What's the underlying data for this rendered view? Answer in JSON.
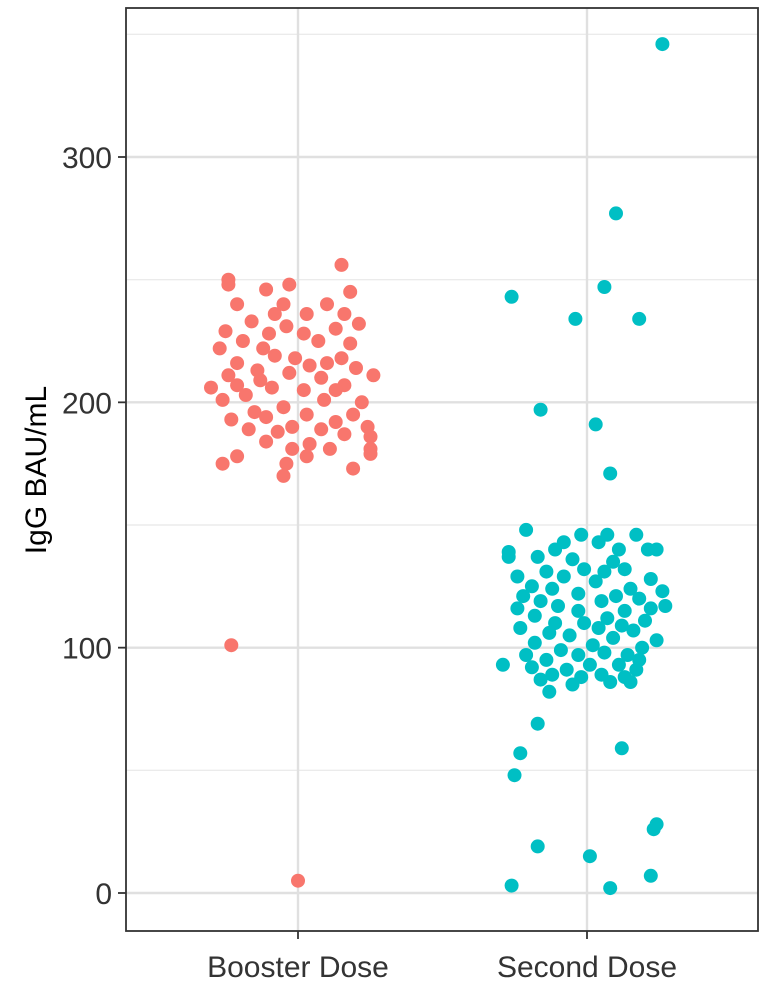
{
  "chart_data": {
    "type": "scatter",
    "title": "",
    "xlabel": "",
    "ylabel": "IgG BAU/mL",
    "ylim": [
      -16,
      357
    ],
    "y_ticks": [
      0,
      100,
      200,
      300
    ],
    "y_tick_labels": [
      "0",
      "100",
      "200",
      "300"
    ],
    "grid": true,
    "legend": "none",
    "categories": [
      "Booster Dose",
      "Second Dose"
    ],
    "series": [
      {
        "color": "#F8766D",
        "category": "Booster Dose",
        "points": [
          {
            "x": -0.24,
            "y": 250
          },
          {
            "x": -0.24,
            "y": 248
          },
          {
            "x": -0.03,
            "y": 248
          },
          {
            "x": 0.15,
            "y": 256
          },
          {
            "x": -0.11,
            "y": 246
          },
          {
            "x": 0.18,
            "y": 245
          },
          {
            "x": -0.21,
            "y": 240
          },
          {
            "x": -0.05,
            "y": 240
          },
          {
            "x": 0.1,
            "y": 240
          },
          {
            "x": -0.08,
            "y": 236
          },
          {
            "x": 0.03,
            "y": 236
          },
          {
            "x": 0.16,
            "y": 236
          },
          {
            "x": -0.16,
            "y": 233
          },
          {
            "x": -0.04,
            "y": 231
          },
          {
            "x": 0.21,
            "y": 232
          },
          {
            "x": -0.25,
            "y": 229
          },
          {
            "x": -0.1,
            "y": 228
          },
          {
            "x": 0.02,
            "y": 228
          },
          {
            "x": 0.13,
            "y": 230
          },
          {
            "x": -0.19,
            "y": 225
          },
          {
            "x": -0.12,
            "y": 222
          },
          {
            "x": 0.07,
            "y": 225
          },
          {
            "x": 0.18,
            "y": 224
          },
          {
            "x": -0.27,
            "y": 222
          },
          {
            "x": -0.08,
            "y": 219
          },
          {
            "x": -0.01,
            "y": 218
          },
          {
            "x": 0.15,
            "y": 218
          },
          {
            "x": -0.21,
            "y": 216
          },
          {
            "x": 0.04,
            "y": 215
          },
          {
            "x": 0.1,
            "y": 216
          },
          {
            "x": -0.14,
            "y": 213
          },
          {
            "x": 0.2,
            "y": 214
          },
          {
            "x": -0.24,
            "y": 211
          },
          {
            "x": -0.03,
            "y": 212
          },
          {
            "x": 0.26,
            "y": 211
          },
          {
            "x": -0.13,
            "y": 209
          },
          {
            "x": 0.08,
            "y": 210
          },
          {
            "x": -0.21,
            "y": 207
          },
          {
            "x": 0.16,
            "y": 207
          },
          {
            "x": -0.09,
            "y": 206
          },
          {
            "x": -0.3,
            "y": 206
          },
          {
            "x": 0.02,
            "y": 205
          },
          {
            "x": 0.13,
            "y": 205
          },
          {
            "x": -0.18,
            "y": 203
          },
          {
            "x": -0.26,
            "y": 201
          },
          {
            "x": 0.09,
            "y": 201
          },
          {
            "x": 0.22,
            "y": 200
          },
          {
            "x": -0.05,
            "y": 198
          },
          {
            "x": -0.15,
            "y": 196
          },
          {
            "x": 0.03,
            "y": 195
          },
          {
            "x": 0.19,
            "y": 195
          },
          {
            "x": -0.23,
            "y": 193
          },
          {
            "x": -0.11,
            "y": 194
          },
          {
            "x": 0.13,
            "y": 192
          },
          {
            "x": -0.02,
            "y": 190
          },
          {
            "x": 0.08,
            "y": 189
          },
          {
            "x": 0.24,
            "y": 190
          },
          {
            "x": -0.17,
            "y": 189
          },
          {
            "x": -0.07,
            "y": 188
          },
          {
            "x": 0.16,
            "y": 187
          },
          {
            "x": 0.25,
            "y": 186
          },
          {
            "x": -0.11,
            "y": 184
          },
          {
            "x": 0.04,
            "y": 183
          },
          {
            "x": -0.02,
            "y": 181
          },
          {
            "x": 0.11,
            "y": 181
          },
          {
            "x": 0.25,
            "y": 181
          },
          {
            "x": 0.25,
            "y": 179
          },
          {
            "x": 0.03,
            "y": 178
          },
          {
            "x": -0.21,
            "y": 178
          },
          {
            "x": -0.04,
            "y": 175
          },
          {
            "x": -0.26,
            "y": 175
          },
          {
            "x": 0.19,
            "y": 173
          },
          {
            "x": -0.05,
            "y": 170
          },
          {
            "x": -0.23,
            "y": 101
          },
          {
            "x": 0.0,
            "y": 5
          }
        ]
      },
      {
        "color": "#00BFC4",
        "category": "Second Dose",
        "points": [
          {
            "x": 0.26,
            "y": 346
          },
          {
            "x": 0.1,
            "y": 277
          },
          {
            "x": -0.26,
            "y": 243
          },
          {
            "x": 0.06,
            "y": 247
          },
          {
            "x": -0.04,
            "y": 234
          },
          {
            "x": 0.18,
            "y": 234
          },
          {
            "x": -0.16,
            "y": 197
          },
          {
            "x": 0.03,
            "y": 191
          },
          {
            "x": 0.08,
            "y": 171
          },
          {
            "x": -0.21,
            "y": 148
          },
          {
            "x": -0.02,
            "y": 146
          },
          {
            "x": 0.07,
            "y": 146
          },
          {
            "x": 0.17,
            "y": 146
          },
          {
            "x": -0.08,
            "y": 143
          },
          {
            "x": 0.04,
            "y": 143
          },
          {
            "x": -0.27,
            "y": 139
          },
          {
            "x": -0.11,
            "y": 140
          },
          {
            "x": 0.11,
            "y": 140
          },
          {
            "x": 0.21,
            "y": 140
          },
          {
            "x": 0.24,
            "y": 140
          },
          {
            "x": -0.17,
            "y": 137
          },
          {
            "x": -0.05,
            "y": 136
          },
          {
            "x": -0.27,
            "y": 137
          },
          {
            "x": 0.09,
            "y": 135
          },
          {
            "x": -0.01,
            "y": 132
          },
          {
            "x": 0.13,
            "y": 132
          },
          {
            "x": -0.14,
            "y": 131
          },
          {
            "x": 0.06,
            "y": 131
          },
          {
            "x": -0.24,
            "y": 129
          },
          {
            "x": -0.08,
            "y": 129
          },
          {
            "x": 0.22,
            "y": 128
          },
          {
            "x": 0.03,
            "y": 127
          },
          {
            "x": -0.19,
            "y": 125
          },
          {
            "x": -0.12,
            "y": 124
          },
          {
            "x": 0.15,
            "y": 124
          },
          {
            "x": 0.26,
            "y": 123
          },
          {
            "x": -0.22,
            "y": 121
          },
          {
            "x": -0.03,
            "y": 122
          },
          {
            "x": 0.1,
            "y": 121
          },
          {
            "x": -0.16,
            "y": 119
          },
          {
            "x": 0.05,
            "y": 119
          },
          {
            "x": 0.18,
            "y": 120
          },
          {
            "x": -0.1,
            "y": 117
          },
          {
            "x": 0.22,
            "y": 116
          },
          {
            "x": 0.27,
            "y": 117
          },
          {
            "x": -0.24,
            "y": 116
          },
          {
            "x": -0.03,
            "y": 115
          },
          {
            "x": 0.13,
            "y": 115
          },
          {
            "x": -0.18,
            "y": 113
          },
          {
            "x": 0.07,
            "y": 112
          },
          {
            "x": 0.2,
            "y": 111
          },
          {
            "x": -0.11,
            "y": 110
          },
          {
            "x": -0.01,
            "y": 110
          },
          {
            "x": 0.12,
            "y": 109
          },
          {
            "x": -0.23,
            "y": 108
          },
          {
            "x": 0.04,
            "y": 108
          },
          {
            "x": 0.16,
            "y": 107
          },
          {
            "x": -0.13,
            "y": 106
          },
          {
            "x": -0.06,
            "y": 105
          },
          {
            "x": 0.09,
            "y": 104
          },
          {
            "x": 0.24,
            "y": 103
          },
          {
            "x": -0.18,
            "y": 102
          },
          {
            "x": 0.02,
            "y": 101
          },
          {
            "x": 0.19,
            "y": 100
          },
          {
            "x": -0.09,
            "y": 99
          },
          {
            "x": 0.06,
            "y": 98
          },
          {
            "x": -0.21,
            "y": 97
          },
          {
            "x": -0.03,
            "y": 97
          },
          {
            "x": 0.14,
            "y": 97
          },
          {
            "x": -0.14,
            "y": 95
          },
          {
            "x": 0.18,
            "y": 95
          },
          {
            "x": -0.29,
            "y": 93
          },
          {
            "x": 0.01,
            "y": 93
          },
          {
            "x": 0.11,
            "y": 93
          },
          {
            "x": -0.19,
            "y": 92
          },
          {
            "x": -0.07,
            "y": 91
          },
          {
            "x": 0.17,
            "y": 91
          },
          {
            "x": -0.12,
            "y": 89
          },
          {
            "x": 0.05,
            "y": 89
          },
          {
            "x": -0.02,
            "y": 88
          },
          {
            "x": 0.13,
            "y": 88
          },
          {
            "x": -0.16,
            "y": 87
          },
          {
            "x": 0.08,
            "y": 86
          },
          {
            "x": -0.05,
            "y": 85
          },
          {
            "x": 0.15,
            "y": 86
          },
          {
            "x": -0.13,
            "y": 82
          },
          {
            "x": -0.17,
            "y": 69
          },
          {
            "x": 0.12,
            "y": 59
          },
          {
            "x": -0.23,
            "y": 57
          },
          {
            "x": -0.25,
            "y": 48
          },
          {
            "x": 0.24,
            "y": 28
          },
          {
            "x": 0.23,
            "y": 26
          },
          {
            "x": -0.17,
            "y": 19
          },
          {
            "x": 0.01,
            "y": 15
          },
          {
            "x": 0.22,
            "y": 7
          },
          {
            "x": -0.26,
            "y": 3
          },
          {
            "x": 0.08,
            "y": 2
          }
        ]
      }
    ]
  }
}
